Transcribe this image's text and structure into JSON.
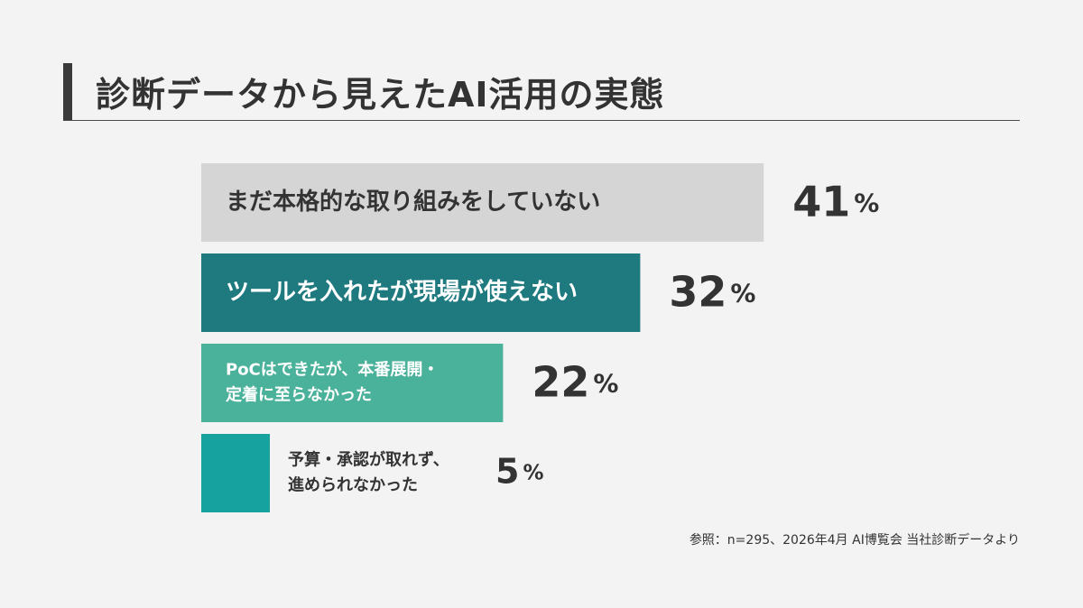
{
  "title": "診断データから見えたAI活用の実態",
  "source_note": "参照：n=295、2026年4月 AI博覧会 当社診断データより",
  "colors": {
    "background": "#f3f3f3",
    "title_accent": "#3a3a3a",
    "text_dark": "#333333",
    "text_light": "#ffffff"
  },
  "chart_data": {
    "type": "bar",
    "orientation": "horizontal",
    "categories": [
      [
        "まだ本格的な取り組みをしていない"
      ],
      [
        "ツールを入れたが現場が使えない"
      ],
      [
        "PoCはできたが、本番展開・",
        "定着に至らなかった"
      ],
      [
        "予算・承認が取れず、",
        "進められなかった"
      ]
    ],
    "values": [
      41,
      32,
      22,
      5
    ],
    "value_labels": [
      "41",
      "32",
      "22",
      "5"
    ],
    "unit": "%",
    "bar_colors": [
      "#d5d5d5",
      "#1f7a80",
      "#4ab19a",
      "#16a39f"
    ],
    "label_colors": [
      "#333333",
      "#ffffff",
      "#ffffff",
      "#333333"
    ],
    "grid": false,
    "legend": "none"
  }
}
